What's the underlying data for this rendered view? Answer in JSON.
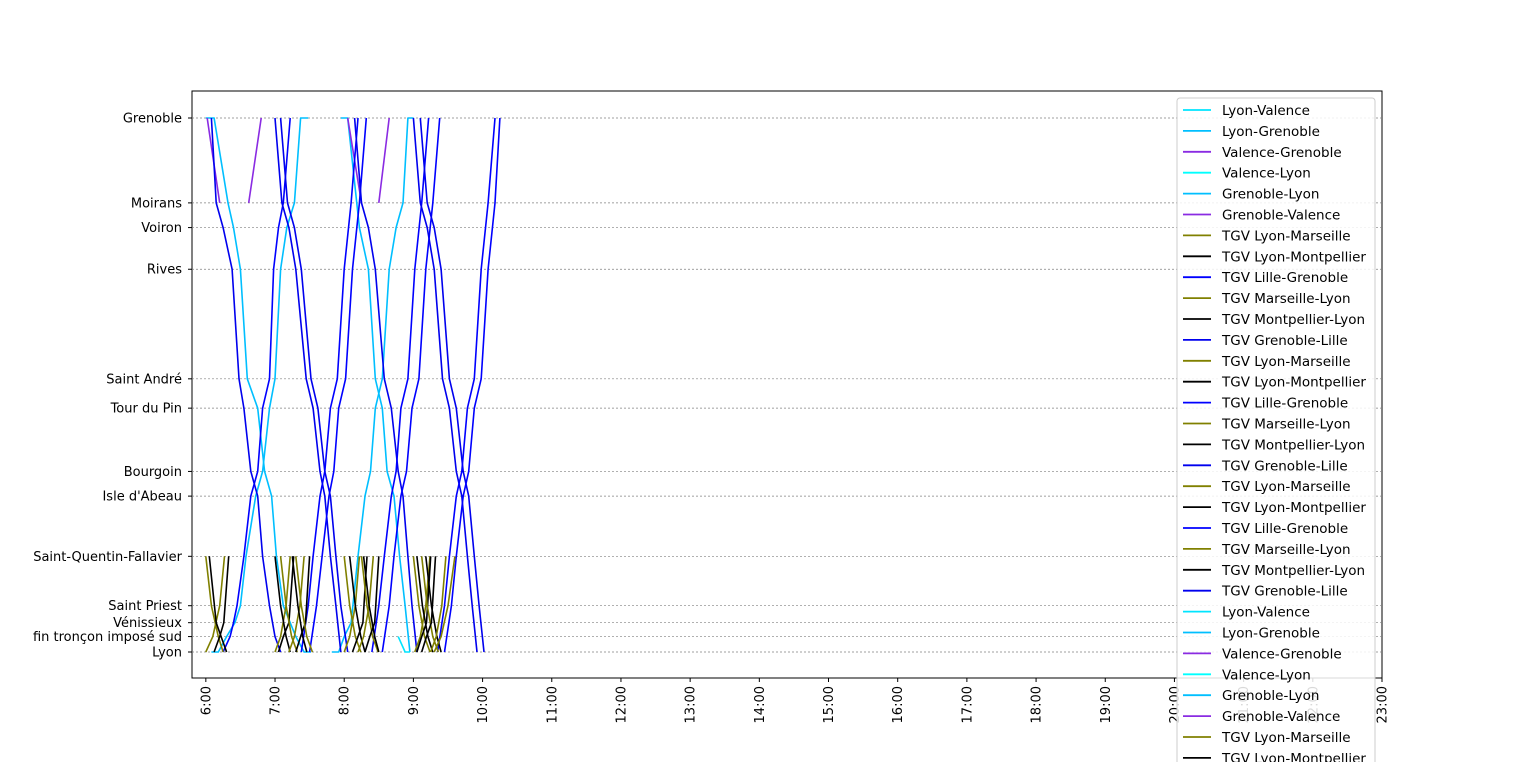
{
  "chart_data": {
    "type": "line",
    "title": "",
    "xlabel": "",
    "ylabel": "",
    "x_ticks": [
      "6:00",
      "7:00",
      "8:00",
      "9:00",
      "10:00",
      "11:00",
      "12:00",
      "13:00",
      "14:00",
      "15:00",
      "16:00",
      "17:00",
      "18:00",
      "19:00",
      "20:00",
      "21:00",
      "22:00",
      "23:00"
    ],
    "xlim_hours": [
      5.8,
      23.0
    ],
    "stations": [
      {
        "name": "Grenoble",
        "pos": 0
      },
      {
        "name": "Moirans",
        "pos": 5.5
      },
      {
        "name": "Voiron",
        "pos": 7.1
      },
      {
        "name": "Rives",
        "pos": 9.8
      },
      {
        "name": "Saint André",
        "pos": 16.9
      },
      {
        "name": "Tour du Pin",
        "pos": 18.8
      },
      {
        "name": "Bourgoin",
        "pos": 22.9
      },
      {
        "name": "Isle d'Abeau",
        "pos": 24.5
      },
      {
        "name": "Saint-Quentin-Fallavier",
        "pos": 28.4
      },
      {
        "name": "Saint Priest",
        "pos": 31.6
      },
      {
        "name": "Vénissieux",
        "pos": 32.7
      },
      {
        "name": "fin tronçon imposé sud",
        "pos": 33.6
      },
      {
        "name": "Lyon",
        "pos": 34.6
      }
    ],
    "grid": "horizontal dashed at stations",
    "legend_position": "top-right",
    "colors": {
      "Lyon-Valence": "#00e5ff",
      "Lyon-Grenoble": "#00bfff",
      "Valence-Grenoble": "#8a2be2",
      "Valence-Lyon": "#00ffff",
      "Grenoble-Lyon": "#00bfff",
      "Grenoble-Valence": "#8a2be2",
      "TGV Lyon-Marseille": "#808000",
      "TGV Lyon-Montpellier": "#000000",
      "TGV Lille-Grenoble": "#0000ff",
      "TGV Marseille-Lyon": "#808000",
      "TGV Montpellier-Lyon": "#000000",
      "TGV Grenoble-Lille": "#0000ee"
    },
    "legend": [
      "Lyon-Valence",
      "Lyon-Grenoble",
      "Valence-Grenoble",
      "Valence-Lyon",
      "Grenoble-Lyon",
      "Grenoble-Valence",
      "TGV Lyon-Marseille",
      "TGV Lyon-Montpellier",
      "TGV Lille-Grenoble",
      "TGV Marseille-Lyon",
      "TGV Montpellier-Lyon",
      "TGV Grenoble-Lille",
      "TGV Lyon-Marseille",
      "TGV Lyon-Montpellier",
      "TGV Lille-Grenoble",
      "TGV Marseille-Lyon",
      "TGV Montpellier-Lyon",
      "TGV Grenoble-Lille",
      "TGV Lyon-Marseille",
      "TGV Lyon-Montpellier",
      "TGV Lille-Grenoble",
      "TGV Marseille-Lyon",
      "TGV Montpellier-Lyon",
      "TGV Grenoble-Lille",
      "Lyon-Valence",
      "Lyon-Grenoble",
      "Valence-Grenoble",
      "Valence-Lyon",
      "Grenoble-Lyon",
      "Grenoble-Valence",
      "TGV Lyon-Marseille",
      "TGV Lyon-Montpellier"
    ],
    "series": [
      {
        "name": "Lyon-Grenoble",
        "x": [
          6.08,
          6.18,
          6.3,
          6.42,
          6.5,
          6.58,
          6.72,
          6.82,
          6.92,
          7.0,
          7.08,
          7.17,
          7.28,
          7.37,
          7.48
        ],
        "y": [
          34.6,
          34.6,
          33.6,
          32.7,
          31.6,
          28.4,
          24.5,
          22.9,
          18.8,
          16.9,
          9.8,
          7.1,
          5.5,
          0,
          0
        ]
      },
      {
        "name": "Grenoble-Lyon",
        "x": [
          6.0,
          6.12,
          6.32,
          6.4,
          6.5,
          6.6,
          6.75,
          6.85,
          6.95,
          7.02,
          7.12,
          7.22,
          7.3,
          7.42,
          7.52
        ],
        "y": [
          0,
          0,
          5.5,
          7.1,
          9.8,
          16.9,
          18.8,
          22.9,
          24.5,
          28.4,
          31.6,
          32.7,
          33.6,
          34.6,
          34.6
        ]
      },
      {
        "name": "Grenoble-Lyon",
        "x": [
          7.95,
          8.05,
          8.22,
          8.35,
          8.45,
          8.55,
          8.62,
          8.72,
          8.8,
          8.88,
          8.95
        ],
        "y": [
          0,
          0,
          7.1,
          9.8,
          16.9,
          18.8,
          22.9,
          24.5,
          28.4,
          31.6,
          34.6
        ]
      },
      {
        "name": "Lyon-Grenoble",
        "x": [
          7.82,
          7.92,
          8.0,
          8.1,
          8.2,
          8.3,
          8.38,
          8.45,
          8.55,
          8.65,
          8.75,
          8.85,
          8.92,
          9.0
        ],
        "y": [
          34.6,
          34.6,
          33.6,
          32.7,
          28.4,
          24.5,
          22.9,
          18.8,
          16.9,
          9.8,
          7.1,
          5.5,
          0,
          0
        ]
      },
      {
        "name": "Lyon-Valence",
        "x": [
          8.78,
          8.88,
          8.95
        ],
        "y": [
          33.6,
          34.6,
          34.6
        ]
      },
      {
        "name": "Valence-Grenoble",
        "x": [
          6.62,
          6.8
        ],
        "y": [
          5.5,
          0
        ]
      },
      {
        "name": "Grenoble-Valence",
        "x": [
          6.02,
          6.2
        ],
        "y": [
          0,
          5.5
        ]
      },
      {
        "name": "Valence-Grenoble",
        "x": [
          8.5,
          8.65
        ],
        "y": [
          5.5,
          0
        ]
      },
      {
        "name": "Grenoble-Valence",
        "x": [
          8.05,
          8.25
        ],
        "y": [
          0,
          5.5
        ]
      },
      {
        "name": "TGV Lille-Grenoble",
        "x": [
          6.25,
          6.35,
          6.4,
          6.45,
          6.55,
          6.65,
          6.75,
          6.82,
          6.92,
          6.98,
          7.05,
          7.12,
          7.22
        ],
        "y": [
          34.6,
          33.6,
          32.7,
          31.6,
          28.4,
          24.5,
          22.9,
          18.8,
          16.9,
          9.8,
          7.1,
          5.5,
          0
        ]
      },
      {
        "name": "TGV Grenoble-Lille",
        "x": [
          6.08,
          6.15,
          6.25,
          6.38,
          6.48,
          6.55,
          6.65,
          6.75,
          6.82,
          6.92,
          7.0,
          7.08
        ],
        "y": [
          0,
          5.5,
          7.1,
          9.8,
          16.9,
          18.8,
          22.9,
          24.5,
          28.4,
          31.6,
          33.6,
          34.6
        ]
      },
      {
        "name": "TGV Grenoble-Lille",
        "x": [
          7.0,
          7.1,
          7.2,
          7.3,
          7.45,
          7.55,
          7.65,
          7.72,
          7.8,
          7.88,
          7.95
        ],
        "y": [
          0,
          5.5,
          7.1,
          9.8,
          16.9,
          18.8,
          22.9,
          24.5,
          28.4,
          31.6,
          34.6
        ]
      },
      {
        "name": "TGV Grenoble-Lille",
        "x": [
          7.08,
          7.18,
          7.28,
          7.38,
          7.52,
          7.62,
          7.72,
          7.8,
          7.88,
          7.95,
          8.05
        ],
        "y": [
          0,
          5.5,
          7.1,
          9.8,
          16.9,
          18.8,
          22.9,
          24.5,
          28.4,
          31.6,
          34.6
        ]
      },
      {
        "name": "TGV Lille-Grenoble",
        "x": [
          7.38,
          7.48,
          7.55,
          7.65,
          7.72,
          7.8,
          7.9,
          8.0,
          8.1,
          8.2
        ],
        "y": [
          34.6,
          31.6,
          28.4,
          24.5,
          22.9,
          18.8,
          16.9,
          9.8,
          5.5,
          0
        ]
      },
      {
        "name": "TGV Lille-Grenoble",
        "x": [
          7.5,
          7.6,
          7.68,
          7.78,
          7.85,
          7.92,
          8.02,
          8.12,
          8.22,
          8.32
        ],
        "y": [
          34.6,
          31.6,
          28.4,
          24.5,
          22.9,
          18.8,
          16.9,
          9.8,
          5.5,
          0
        ]
      },
      {
        "name": "TGV Grenoble-Lille",
        "x": [
          8.15,
          8.25,
          8.35,
          8.45,
          8.58,
          8.68,
          8.78,
          8.85,
          8.92,
          8.98,
          9.05
        ],
        "y": [
          0,
          5.5,
          7.1,
          9.8,
          16.9,
          18.8,
          22.9,
          24.5,
          28.4,
          31.6,
          34.6
        ]
      },
      {
        "name": "TGV Lille-Grenoble",
        "x": [
          8.4,
          8.5,
          8.58,
          8.68,
          8.75,
          8.82,
          8.92,
          9.02,
          9.12,
          9.22
        ],
        "y": [
          34.6,
          31.6,
          28.4,
          24.5,
          22.9,
          18.8,
          16.9,
          9.8,
          5.5,
          0
        ]
      },
      {
        "name": "TGV Lille-Grenoble",
        "x": [
          8.55,
          8.65,
          8.72,
          8.82,
          8.9,
          8.98,
          9.08,
          9.18,
          9.28,
          9.38
        ],
        "y": [
          34.6,
          31.6,
          28.4,
          24.5,
          22.9,
          18.8,
          16.9,
          9.8,
          5.5,
          0
        ]
      },
      {
        "name": "TGV Grenoble-Lille",
        "x": [
          9.0,
          9.1,
          9.2,
          9.3,
          9.42,
          9.52,
          9.62,
          9.7,
          9.78,
          9.85,
          9.92
        ],
        "y": [
          0,
          5.5,
          7.1,
          9.8,
          16.9,
          18.8,
          22.9,
          24.5,
          28.4,
          31.6,
          34.6
        ]
      },
      {
        "name": "TGV Grenoble-Lille",
        "x": [
          9.1,
          9.2,
          9.3,
          9.4,
          9.52,
          9.62,
          9.72,
          9.8,
          9.88,
          9.95,
          10.02
        ],
        "y": [
          0,
          5.5,
          7.1,
          9.8,
          16.9,
          18.8,
          22.9,
          24.5,
          28.4,
          31.6,
          34.6
        ]
      },
      {
        "name": "TGV Lille-Grenoble",
        "x": [
          9.35,
          9.45,
          9.52,
          9.62,
          9.7,
          9.78,
          9.88,
          9.98,
          10.08,
          10.18
        ],
        "y": [
          34.6,
          31.6,
          28.4,
          24.5,
          22.9,
          18.8,
          16.9,
          9.8,
          5.5,
          0
        ]
      },
      {
        "name": "TGV Lille-Grenoble",
        "x": [
          9.45,
          9.55,
          9.62,
          9.72,
          9.8,
          9.88,
          9.98,
          10.08,
          10.18,
          10.25
        ],
        "y": [
          34.6,
          31.6,
          28.4,
          24.5,
          22.9,
          18.8,
          16.9,
          9.8,
          5.5,
          0
        ]
      },
      {
        "name": "TGV Marseille-Lyon",
        "x": [
          6.0,
          6.08,
          6.18,
          6.25
        ],
        "y": [
          28.4,
          31.6,
          33.6,
          34.6
        ]
      },
      {
        "name": "TGV Lyon-Marseille",
        "x": [
          6.0,
          6.1,
          6.2,
          6.27
        ],
        "y": [
          34.6,
          33.6,
          31.6,
          28.4
        ]
      },
      {
        "name": "TGV Montpellier-Lyon",
        "x": [
          6.05,
          6.15,
          6.22,
          6.3
        ],
        "y": [
          28.4,
          32.7,
          33.6,
          34.6
        ]
      },
      {
        "name": "TGV Lyon-Montpellier",
        "x": [
          6.12,
          6.2,
          6.26,
          6.33
        ],
        "y": [
          34.6,
          33.6,
          32.7,
          28.4
        ]
      },
      {
        "name": "TGV Lyon-Marseille",
        "x": [
          7.0,
          7.08,
          7.16,
          7.22
        ],
        "y": [
          34.6,
          33.6,
          31.6,
          28.4
        ]
      },
      {
        "name": "TGV Montpellier-Lyon",
        "x": [
          7.0,
          7.08,
          7.16,
          7.22
        ],
        "y": [
          28.4,
          31.6,
          33.6,
          34.6
        ]
      },
      {
        "name": "TGV Lyon-Montpellier",
        "x": [
          7.05,
          7.12,
          7.2,
          7.27
        ],
        "y": [
          34.6,
          33.6,
          32.7,
          28.4
        ]
      },
      {
        "name": "TGV Marseille-Lyon",
        "x": [
          7.08,
          7.16,
          7.24,
          7.32
        ],
        "y": [
          28.4,
          31.6,
          33.6,
          34.6
        ]
      },
      {
        "name": "TGV Lyon-Marseille",
        "x": [
          7.2,
          7.28,
          7.36,
          7.42
        ],
        "y": [
          34.6,
          33.6,
          31.6,
          28.4
        ]
      },
      {
        "name": "TGV Montpellier-Lyon",
        "x": [
          7.25,
          7.33,
          7.4,
          7.46
        ],
        "y": [
          28.4,
          31.6,
          33.6,
          34.6
        ]
      },
      {
        "name": "TGV Lyon-Montpellier",
        "x": [
          7.3,
          7.37,
          7.44,
          7.5
        ],
        "y": [
          34.6,
          33.6,
          32.7,
          28.4
        ]
      },
      {
        "name": "TGV Marseille-Lyon",
        "x": [
          7.3,
          7.38,
          7.46,
          7.54
        ],
        "y": [
          28.4,
          31.6,
          33.6,
          34.6
        ]
      },
      {
        "name": "TGV Lyon-Marseille",
        "x": [
          8.0,
          8.08,
          8.16,
          8.22
        ],
        "y": [
          34.6,
          33.6,
          31.6,
          28.4
        ]
      },
      {
        "name": "TGV Marseille-Lyon",
        "x": [
          8.0,
          8.08,
          8.16,
          8.24
        ],
        "y": [
          28.4,
          31.6,
          33.6,
          34.6
        ]
      },
      {
        "name": "TGV Montpellier-Lyon",
        "x": [
          8.08,
          8.16,
          8.24,
          8.3
        ],
        "y": [
          28.4,
          31.6,
          33.6,
          34.6
        ]
      },
      {
        "name": "TGV Lyon-Montpellier",
        "x": [
          8.12,
          8.2,
          8.27,
          8.33
        ],
        "y": [
          34.6,
          33.6,
          32.7,
          28.4
        ]
      },
      {
        "name": "TGV Lyon-Marseille",
        "x": [
          8.2,
          8.28,
          8.36,
          8.42
        ],
        "y": [
          34.6,
          33.6,
          31.6,
          28.4
        ]
      },
      {
        "name": "TGV Marseille-Lyon",
        "x": [
          8.25,
          8.33,
          8.41,
          8.49
        ],
        "y": [
          28.4,
          31.6,
          33.6,
          34.6
        ]
      },
      {
        "name": "TGV Montpellier-Lyon",
        "x": [
          8.28,
          8.36,
          8.44,
          8.5
        ],
        "y": [
          28.4,
          31.6,
          33.6,
          34.6
        ]
      },
      {
        "name": "TGV Lyon-Montpellier",
        "x": [
          8.3,
          8.37,
          8.44,
          8.5
        ],
        "y": [
          34.6,
          33.6,
          32.7,
          28.4
        ]
      },
      {
        "name": "TGV Marseille-Lyon",
        "x": [
          9.0,
          9.08,
          9.16,
          9.24
        ],
        "y": [
          28.4,
          31.6,
          33.6,
          34.6
        ]
      },
      {
        "name": "TGV Lyon-Marseille",
        "x": [
          9.02,
          9.1,
          9.18,
          9.24
        ],
        "y": [
          34.6,
          33.6,
          31.6,
          28.4
        ]
      },
      {
        "name": "TGV Montpellier-Lyon",
        "x": [
          9.05,
          9.13,
          9.21,
          9.28
        ],
        "y": [
          28.4,
          31.6,
          33.6,
          34.6
        ]
      },
      {
        "name": "TGV Lyon-Montpellier",
        "x": [
          9.05,
          9.12,
          9.19,
          9.25
        ],
        "y": [
          34.6,
          33.6,
          32.7,
          28.4
        ]
      },
      {
        "name": "TGV Marseille-Lyon",
        "x": [
          9.12,
          9.2,
          9.28,
          9.36
        ],
        "y": [
          28.4,
          31.6,
          33.6,
          34.6
        ]
      },
      {
        "name": "TGV Lyon-Montpellier",
        "x": [
          9.12,
          9.19,
          9.26,
          9.32
        ],
        "y": [
          34.6,
          33.6,
          32.7,
          28.4
        ]
      },
      {
        "name": "TGV Montpellier-Lyon",
        "x": [
          9.18,
          9.26,
          9.34,
          9.4
        ],
        "y": [
          28.4,
          31.6,
          33.6,
          34.6
        ]
      },
      {
        "name": "TGV Lyon-Marseille",
        "x": [
          9.25,
          9.33,
          9.41,
          9.47
        ],
        "y": [
          34.6,
          33.6,
          31.6,
          28.4
        ]
      },
      {
        "name": "TGV Lyon-Marseille",
        "x": [
          9.3,
          9.4,
          9.5,
          9.6
        ],
        "y": [
          34.6,
          33.6,
          31.6,
          28.4
        ]
      }
    ]
  }
}
